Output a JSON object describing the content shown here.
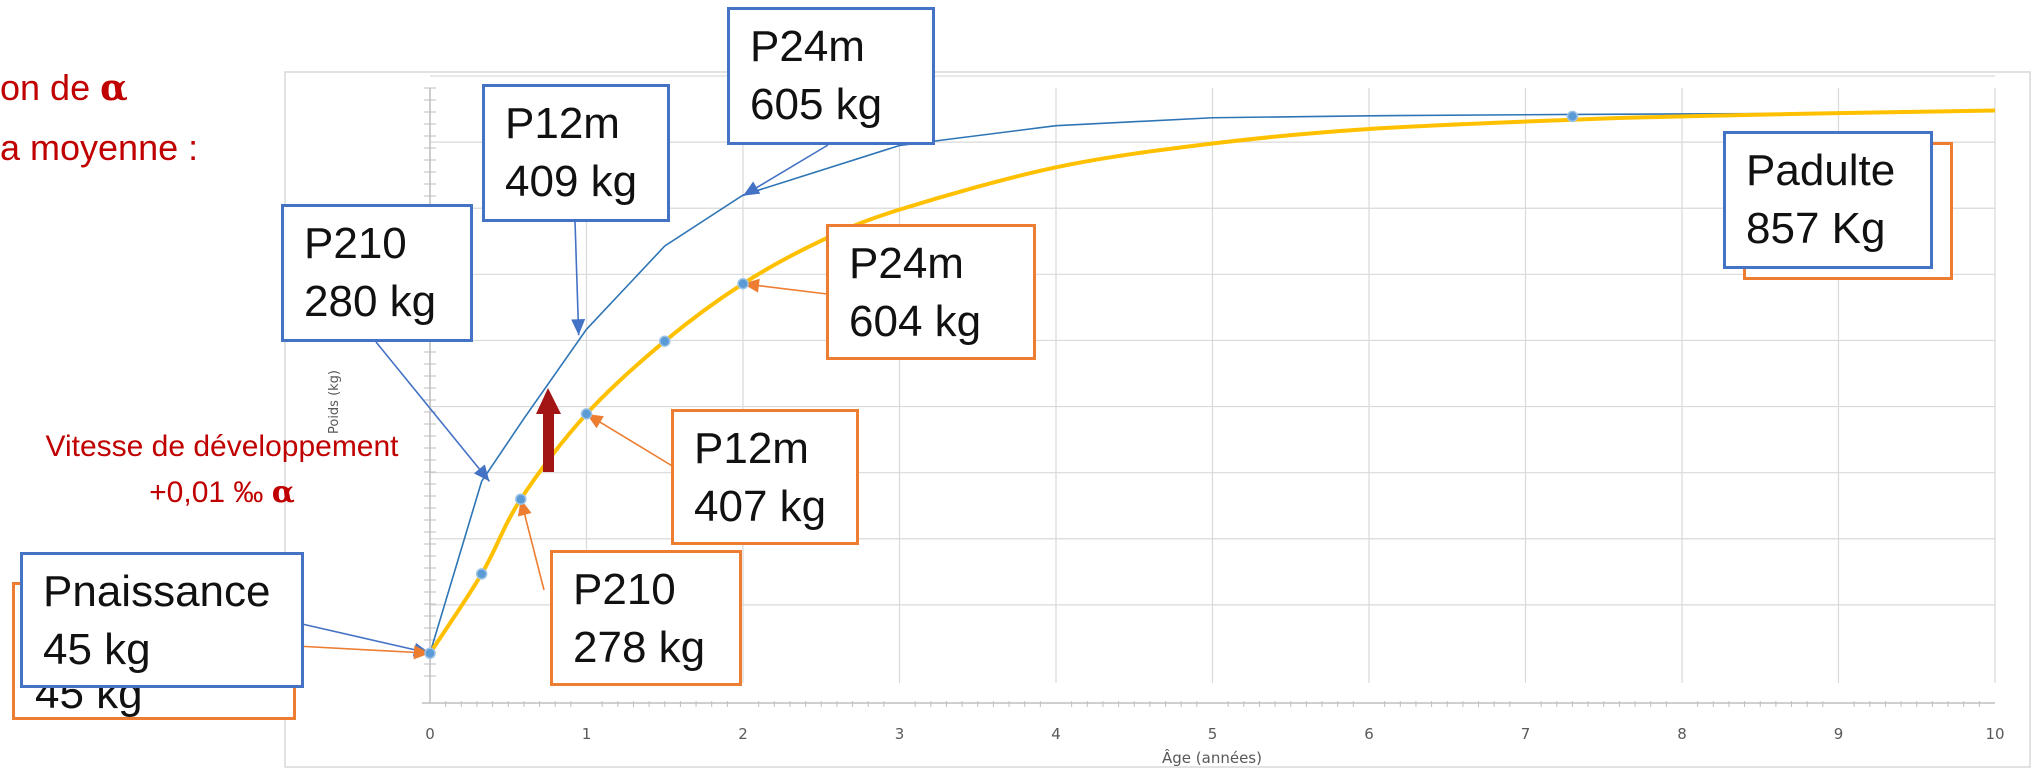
{
  "header_fragment": {
    "line1_prefix": "on de ",
    "line1_symbol": "α",
    "line2": "a moyenne :"
  },
  "speed_annotation": {
    "line1": "Vitesse de développement",
    "line2_prefix": "+0,01 ‰ ",
    "line2_symbol": "α"
  },
  "colors": {
    "blue_series": "#2e75b6",
    "yellow_series": "#ffc000",
    "blue_box": "#4472c4",
    "orange_box": "#ed7d31",
    "red_text": "#c00000",
    "arrow": "#a31515"
  },
  "callouts": {
    "pnaissance_orange_partial": "45 kg",
    "pnaissance": {
      "name": "Pnaissance",
      "value": "45 kg"
    },
    "p210_blue": {
      "name": "P210",
      "value": "280 kg"
    },
    "p12m_blue": {
      "name": "P12m",
      "value": "409 kg"
    },
    "p24m_blue": {
      "name": "P24m",
      "value": "605 kg"
    },
    "padulte": {
      "name": "Padulte",
      "value": "857 Kg"
    },
    "p24m_orange": {
      "name": "P24m",
      "value": "604 kg"
    },
    "p12m_orange": {
      "name": "P12m",
      "value": "407 kg"
    },
    "p210_orange": {
      "name": "P210",
      "value": "278 kg"
    }
  },
  "chart_data": {
    "type": "line",
    "xlabel": "Âge (années)",
    "ylabel": "Poids (kg)",
    "xlim": [
      0,
      10
    ],
    "ylim": [
      0,
      900
    ],
    "x_ticks": [
      "0",
      "1",
      "2",
      "3",
      "4",
      "5",
      "6",
      "7",
      "8",
      "9",
      "10"
    ],
    "grid": true,
    "series": [
      {
        "points": [
          [
            0,
            45
          ],
          [
            0.33,
            305
          ],
          [
            0.6,
            400
          ],
          [
            1,
            535
          ],
          [
            1.5,
            661
          ],
          [
            2,
            738
          ],
          [
            3,
            813
          ],
          [
            4,
            843
          ],
          [
            5,
            855
          ],
          [
            6,
            858
          ],
          [
            7.3,
            860
          ],
          [
            9.2,
            862
          ]
        ]
      },
      {
        "points": [
          [
            0,
            45
          ],
          [
            0.33,
            165
          ],
          [
            0.58,
            278
          ],
          [
            1,
            407
          ],
          [
            1.5,
            517
          ],
          [
            2,
            604
          ],
          [
            2.5,
            669
          ],
          [
            3,
            716
          ],
          [
            4,
            780
          ],
          [
            5,
            816
          ],
          [
            6,
            838
          ],
          [
            7.3,
            852
          ],
          [
            8,
            857
          ],
          [
            9,
            862
          ],
          [
            10,
            866
          ]
        ]
      }
    ],
    "markers": [
      [
        0,
        45
      ],
      [
        0.33,
        165
      ],
      [
        0.58,
        278
      ],
      [
        1,
        407
      ],
      [
        1.5,
        517
      ],
      [
        2,
        604
      ],
      [
        7.3,
        857
      ]
    ]
  }
}
